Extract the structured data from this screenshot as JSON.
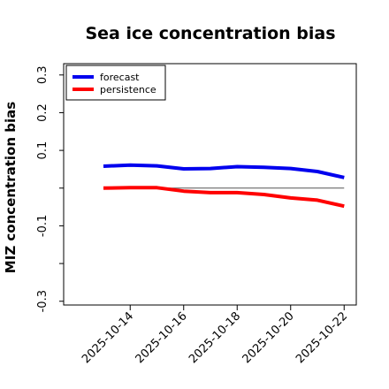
{
  "chart_data": {
    "type": "line",
    "title": "Sea ice concentration bias",
    "ylabel": "MIZ concentration bias",
    "xlabel": "",
    "x": [
      "2025-10-13",
      "2025-10-14",
      "2025-10-15",
      "2025-10-16",
      "2025-10-17",
      "2025-10-18",
      "2025-10-19",
      "2025-10-20",
      "2025-10-21",
      "2025-10-22"
    ],
    "ylim": [
      -0.31,
      0.33
    ],
    "yticks": [
      -0.3,
      -0.1,
      0.1,
      0.2,
      0.3
    ],
    "yticks_unlabeled": [
      -0.2,
      0.0
    ],
    "xticks": [
      "2025-10-14",
      "2025-10-16",
      "2025-10-18",
      "2025-10-20",
      "2025-10-22"
    ],
    "highlight_tick": "2025-10-14",
    "highlight_color": "#228B22",
    "zero_line": true,
    "grid": false,
    "legend_position": "top-left",
    "series": [
      {
        "name": "forecast",
        "color": "#0000ee",
        "values": [
          0.058,
          0.061,
          0.059,
          0.051,
          0.052,
          0.057,
          0.055,
          0.052,
          0.044,
          0.028
        ]
      },
      {
        "name": "persistence",
        "color": "#ff0000",
        "values": [
          0.0,
          0.001,
          0.001,
          -0.008,
          -0.012,
          -0.012,
          -0.017,
          -0.026,
          -0.032,
          -0.048
        ]
      }
    ]
  }
}
